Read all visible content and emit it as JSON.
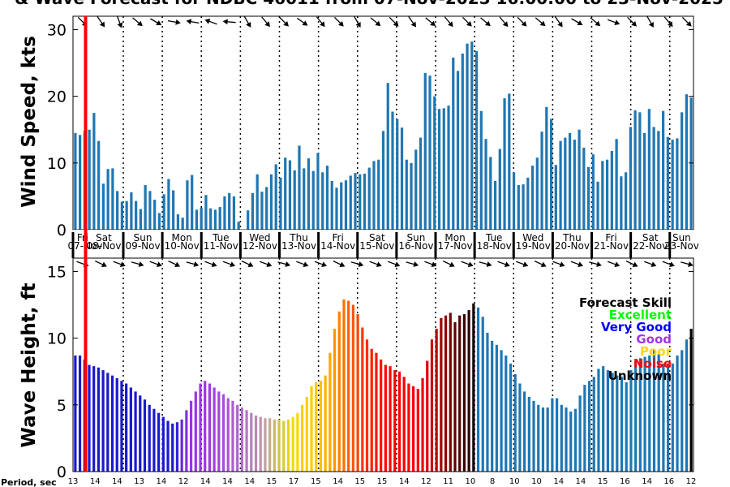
{
  "chart_data": [
    {
      "type": "bar",
      "title": "& Wave Forecast for NDBC 46011 from 07-Nov-2025 16:00:00 to 23-Nov-2025",
      "ylabel": "Wind Speed, kts",
      "ylim": [
        0,
        32
      ],
      "yticks": [
        "0",
        "10",
        "20",
        "30"
      ],
      "day_labels": [
        "Fri",
        "Sat",
        "Sun",
        "Mon",
        "Tue",
        "Wed",
        "Thu",
        "Fri",
        "Sat",
        "Sun",
        "Mon",
        "Tue",
        "Wed",
        "Thu",
        "Fri",
        "Sat",
        "Sun"
      ],
      "date_labels": [
        "07-Nov",
        "08-Nov",
        "09-Nov",
        "10-Nov",
        "11-Nov",
        "12-Nov",
        "13-Nov",
        "14-Nov",
        "15-Nov",
        "16-Nov",
        "17-Nov",
        "18-Nov",
        "19-Nov",
        "20-Nov",
        "21-Nov",
        "22-Nov",
        "23-Nov"
      ],
      "bar_color": "#1f77b4",
      "values": [
        14.5,
        14.2,
        14.8,
        15.0,
        17.5,
        13.3,
        6.9,
        9.1,
        9.2,
        5.8,
        4.2,
        4.3,
        5.6,
        4.3,
        3.1,
        6.7,
        5.8,
        4.5,
        2.5,
        5.3,
        7.6,
        5.9,
        2.3,
        1.8,
        7.4,
        8.2,
        3.0,
        3.3,
        5.2,
        3.2,
        3.0,
        3.4,
        5.0,
        5.5,
        5.0,
        1.2,
        0,
        2.9,
        5.5,
        8.3,
        5.7,
        6.4,
        8.3,
        9.8,
        7.8,
        10.8,
        10.4,
        8.9,
        12.6,
        9.2,
        10.7,
        8.8,
        11.5,
        8.6,
        9.6,
        7.3,
        6.3,
        7.1,
        7.4,
        8.1,
        8.5,
        8.3,
        8.4,
        9.3,
        10.3,
        10.5,
        14.8,
        22.0,
        17.7,
        16.6,
        15.3,
        10.5,
        10.0,
        12.0,
        13.8,
        23.5,
        23.1,
        20.0,
        18.1,
        18.2,
        18.6,
        25.8,
        23.8,
        26.4,
        27.9,
        28.2,
        26.8,
        17.8,
        13.6,
        10.9,
        7.3,
        12.1,
        19.7,
        20.4,
        8.6,
        6.7,
        6.8,
        7.8,
        9.6,
        10.8,
        14.7,
        18.4,
        16.6,
        9.7,
        13.3,
        13.8,
        14.5,
        13.5,
        15.0,
        12.3,
        9.4,
        11.3,
        7.2,
        10.3,
        10.5,
        11.8,
        13.6,
        8.0,
        8.6,
        15.4,
        17.9,
        17.6,
        14.5,
        18.1,
        15.4,
        14.8,
        17.8,
        13.9,
        13.5,
        13.7,
        17.6,
        20.3,
        19.8
      ]
    },
    {
      "type": "bar",
      "ylabel": "Wave Height, ft",
      "ylim": [
        0,
        16
      ],
      "yticks": [
        "0",
        "5",
        "10",
        "15"
      ],
      "x_label": "Period, sec",
      "period_labels": [
        "13",
        "14",
        "14",
        "13",
        "14",
        "12",
        "14",
        "14",
        "14",
        "15",
        "17",
        "15",
        "14",
        "15",
        "15",
        "14",
        "12",
        "11",
        "10",
        "8",
        "10",
        "10",
        "14",
        "14",
        "15",
        "16",
        "14",
        "16",
        "12"
      ],
      "legend": {
        "title": "Forecast Skill",
        "items": [
          {
            "label": "Excellent",
            "color": "#00ff00"
          },
          {
            "label": "Very Good",
            "color": "#0000ff"
          },
          {
            "label": "Good",
            "color": "#9f35e0"
          },
          {
            "label": "Poor",
            "color": "#ffd700"
          },
          {
            "label": "Noise",
            "color": "#ff0000"
          },
          {
            "label": "Unknown",
            "color": "#000000"
          }
        ]
      },
      "values": [
        8.7,
        8.7,
        8.4,
        8.0,
        7.9,
        7.8,
        7.6,
        7.4,
        7.2,
        7.0,
        6.8,
        6.6,
        6.3,
        6.0,
        5.7,
        5.4,
        5.0,
        4.7,
        4.4,
        4.1,
        3.8,
        3.6,
        3.7,
        3.9,
        4.6,
        5.3,
        6.0,
        6.6,
        6.8,
        6.6,
        6.3,
        6.0,
        5.8,
        5.5,
        5.3,
        5.0,
        4.8,
        4.6,
        4.4,
        4.2,
        4.1,
        4.0,
        4.0,
        3.9,
        3.9,
        3.8,
        3.9,
        4.1,
        4.4,
        5.0,
        5.6,
        6.4,
        6.7,
        6.8,
        7.2,
        8.9,
        10.7,
        12.0,
        12.9,
        12.8,
        12.5,
        11.8,
        10.8,
        9.9,
        9.2,
        8.9,
        8.4,
        8.0,
        7.9,
        7.6,
        7.5,
        7.1,
        6.6,
        6.4,
        6.2,
        7.0,
        8.3,
        9.9,
        10.7,
        11.5,
        11.7,
        11.9,
        11.2,
        11.7,
        11.8,
        12.1,
        12.6,
        12.3,
        11.6,
        10.4,
        9.8,
        9.5,
        9.1,
        8.7,
        8.1,
        7.3,
        6.6,
        6.0,
        5.6,
        5.3,
        5.0,
        4.8,
        4.8,
        5.5,
        5.5,
        5.0,
        4.8,
        4.5,
        4.7,
        5.7,
        6.5,
        6.8,
        7.1,
        7.7,
        7.9,
        7.6,
        7.4,
        7.2,
        7.1,
        6.7,
        7.6,
        8.3,
        8.5,
        8.6,
        8.7,
        9.1,
        8.8,
        8.1,
        8.0,
        8.1,
        8.7,
        9.1,
        9.9,
        10.7
      ],
      "colors": [
        "#1a1acc",
        "#1a1acc",
        "#1a1acc",
        "#1a1acc",
        "#1a1acc",
        "#1a1acc",
        "#1a1acc",
        "#1a1acc",
        "#1a1acc",
        "#1a1acc",
        "#1a1acc",
        "#1a1acc",
        "#1a1acc",
        "#1a1acc",
        "#1a1acc",
        "#1a1acc",
        "#1a1acc",
        "#1a1acc",
        "#1a1acc",
        "#1a1acc",
        "#1a1acc",
        "#1a1acc",
        "#3322d8",
        "#6a28dc",
        "#8a2fde",
        "#9a34e0",
        "#9f35e0",
        "#9f35e0",
        "#9f35e0",
        "#a13ade",
        "#a340dc",
        "#a547da",
        "#a84ed8",
        "#aa55d6",
        "#ac5cd4",
        "#ae64d0",
        "#b06dcc",
        "#b276c6",
        "#b580c0",
        "#b88ab8",
        "#bc95ac",
        "#c0a09e",
        "#c5ab8a",
        "#ccb670",
        "#d4c050",
        "#dccb34",
        "#e6d41c",
        "#f0dc08",
        "#f8d800",
        "#fcd000",
        "#ffcf00",
        "#ffcc00",
        "#ffc800",
        "#ffc000",
        "#ffb400",
        "#ffa600",
        "#ff9500",
        "#ff8200",
        "#ff7200",
        "#ff6300",
        "#ff5500",
        "#ff4600",
        "#ff3800",
        "#ff2a00",
        "#ff1f00",
        "#ff1500",
        "#ff0d00",
        "#ff0800",
        "#ff0500",
        "#ff0000",
        "#ff0000",
        "#ff0000",
        "#ff0000",
        "#ff0000",
        "#ff0000",
        "#f20000",
        "#e00000",
        "#cc0000",
        "#b80000",
        "#a30000",
        "#8f0000",
        "#7a0000",
        "#660000",
        "#520000",
        "#3d0000",
        "#290000",
        "#140000",
        "#1f77b4",
        "#1f77b4",
        "#1f77b4",
        "#1f77b4",
        "#1f77b4",
        "#1f77b4",
        "#1f77b4",
        "#1f77b4",
        "#1f77b4",
        "#1f77b4",
        "#1f77b4",
        "#1f77b4",
        "#1f77b4",
        "#1f77b4",
        "#1f77b4",
        "#1f77b4",
        "#1f77b4",
        "#1f77b4",
        "#1f77b4",
        "#1f77b4",
        "#1f77b4",
        "#1f77b4",
        "#1f77b4",
        "#1f77b4",
        "#1f77b4",
        "#1f77b4",
        "#1f77b4",
        "#1f77b4",
        "#1f77b4",
        "#1f77b4",
        "#1f77b4",
        "#1f77b4",
        "#1f77b4",
        "#1f77b4",
        "#1f77b4",
        "#1f77b4",
        "#1f77b4",
        "#1f77b4",
        "#1f77b4",
        "#1f77b4",
        "#1f77b4",
        "#1f77b4",
        "#1f77b4",
        "#1f77b4",
        "#1f77b4",
        "#1f77b4"
      ]
    }
  ]
}
